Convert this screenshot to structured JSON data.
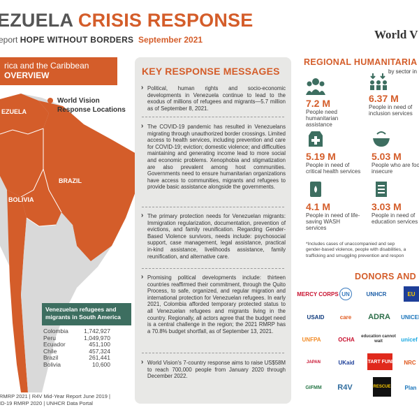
{
  "header": {
    "title_part1": "EZUELA ",
    "title_part2": "CRISIS RESPONSE",
    "sub_part1": "eport ",
    "sub_part2": "HOPE WITHOUT BORDERS",
    "sub_part3": "September 2021",
    "logo_text": "World V"
  },
  "map_panel": {
    "banner_line1": "rica and the Caribbean",
    "banner_line2": "OVERVIEW",
    "legend": "World Vision Response Locations",
    "labels": {
      "ela": "EZUELA",
      "brazil": "BRAZIL",
      "bolivia": "BOLIVIA"
    },
    "refugees_title": "Venezuelan refugees and migrants in South America",
    "refugees": [
      {
        "country": "Colombia",
        "value": "1,742,927"
      },
      {
        "country": "Peru",
        "value": "1,049,970"
      },
      {
        "country": "Ecuador",
        "value": "451,100"
      },
      {
        "country": "Chile",
        "value": "457,324"
      },
      {
        "country": "Brazil",
        "value": "261,441"
      },
      {
        "country": "Bolivia",
        "value": "10,600"
      }
    ],
    "source_line1": "RMRP 2021 | R4V Mid-Year Report June 2019 |",
    "source_line2": "ID-19 RMRP 2020  |  UNHCR Data Portal"
  },
  "key_messages": {
    "title": "KEY RESPONSE MESSAGES",
    "items": [
      "Political, human rights and socio-economic developments in Venezuela continue to lead to the exodus of millions of refugees and migrants—5.7 million as of September 8, 2021.",
      "The COVID-19 pandemic has resulted in Venezuelans migrating through unauthorized border crossings. Limited access to health services, including prevention and care for COVID-19; eviction; domestic violence; and difficulties maintaining and generating income lead to more social and economic problems. Xenophobia and stigmatization are also prevalent among host communities. Governments need to ensure humanitarian organizations have access to communities, migrants and refugees to provide basic assistance alongside the governments.",
      "The primary protection needs for Venezuelan migrants: Immigration regularization, documentation, prevention of evictions, and family reunification. Regarding Gender-Based Violence survivors, needs include: psychosocial support, case management, legal assistance, practical in-kind assistance, livelihoods assistance, family reunification, and alternative care.",
      "Promising political developments include: thirteen countries reaffirmed their commitment, through the Quito Process, to safe, organized, and regular migration and international protection for Venezuelan refugees. In early 2021, Colombia afforded temporary protected status to all Venezuelan refugees and migrants living in the country. Regionally, all actors agree that the budget need is a central challenge in the region; the 2021 RMRP has a 70.8% budget shortfall, as of September 13, 2021.",
      "World Vision's 7-country response aims to raise US$58M to reach 700,000 people from January 2020 through December 2022."
    ]
  },
  "needs": {
    "title": "REGIONAL HUMANITARIA",
    "subtitle": "by sector in",
    "stats": [
      {
        "value": "7.2 M",
        "label": "People need humanitarian assistance",
        "icon": "people-group-icon"
      },
      {
        "value": "6.37 M",
        "label": "People in need of inclusion services",
        "icon": "inclusion-icon"
      },
      {
        "value": "5.19 M",
        "label": "People in need of critical health services",
        "icon": "health-icon"
      },
      {
        "value": "5.03 M",
        "label": "People who are food insecure",
        "icon": "food-bowl-icon"
      },
      {
        "value": "4.1 M",
        "label": "People in need of life-saving WASH services",
        "icon": "water-icon"
      },
      {
        "value": "3.03 M",
        "label": "People in need of education services",
        "icon": "education-icon"
      }
    ],
    "footnote_line1": "*Includes cases of unaccompanied and sep",
    "footnote_line2": "gender-based violence, people with disabilities, a",
    "footnote_line3": "trafficking and smuggling prevention and respon"
  },
  "donors": {
    "title": "DONORS AND",
    "logos": [
      "MERCY CORPS",
      "UN",
      "UNHCR",
      "EU",
      "USAID",
      "care",
      "ADRA",
      "UNICEF",
      "UNFPA",
      "OCHA",
      "education cannot wait",
      "unicef",
      "JAPAN",
      "UKaid",
      "START FUND",
      "NRC",
      "GIFMM",
      "R4V",
      "RESCUE",
      "Plan"
    ]
  },
  "colors": {
    "accent": "#d45d2a",
    "panel": "#e8e8e6",
    "teal": "#3d6e60",
    "icon": "#3d6e60"
  }
}
